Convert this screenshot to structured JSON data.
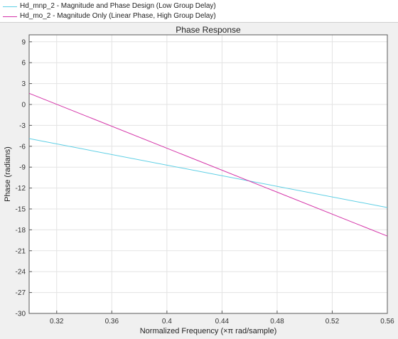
{
  "legend": {
    "entries": [
      {
        "label": "Hd_mnp_2 - Magnitude and Phase Design (Low Group Delay)",
        "color": "#5ecfe5"
      },
      {
        "label": "Hd_mo_2 - Magnitude Only (Linear Phase, High Group Delay)",
        "color": "#d433a8"
      }
    ]
  },
  "chart_data": {
    "type": "line",
    "title": "Phase Response",
    "xlabel": "Normalized Frequency (×π rad/sample)",
    "ylabel": "Phase (radians)",
    "xlim": [
      0.3,
      0.56
    ],
    "ylim": [
      -30,
      10
    ],
    "xticks": [
      "0.32",
      "0.36",
      "0.4",
      "0.44",
      "0.48",
      "0.52",
      "0.56"
    ],
    "yticks": [
      "9",
      "6",
      "3",
      "0",
      "-3",
      "-6",
      "-9",
      "-12",
      "-15",
      "-18",
      "-21",
      "-24",
      "-27",
      "-30"
    ],
    "grid": true,
    "series": [
      {
        "name": "Hd_mnp_2 - Magnitude and Phase Design (Low Group Delay)",
        "color": "#5ecfe5",
        "x": [
          0.3,
          0.56
        ],
        "y": [
          -4.9,
          -14.8
        ]
      },
      {
        "name": "Hd_mo_2 - Magnitude Only (Linear Phase, High Group Delay)",
        "color": "#d433a8",
        "x": [
          0.3,
          0.56
        ],
        "y": [
          1.6,
          -18.9
        ]
      }
    ]
  }
}
